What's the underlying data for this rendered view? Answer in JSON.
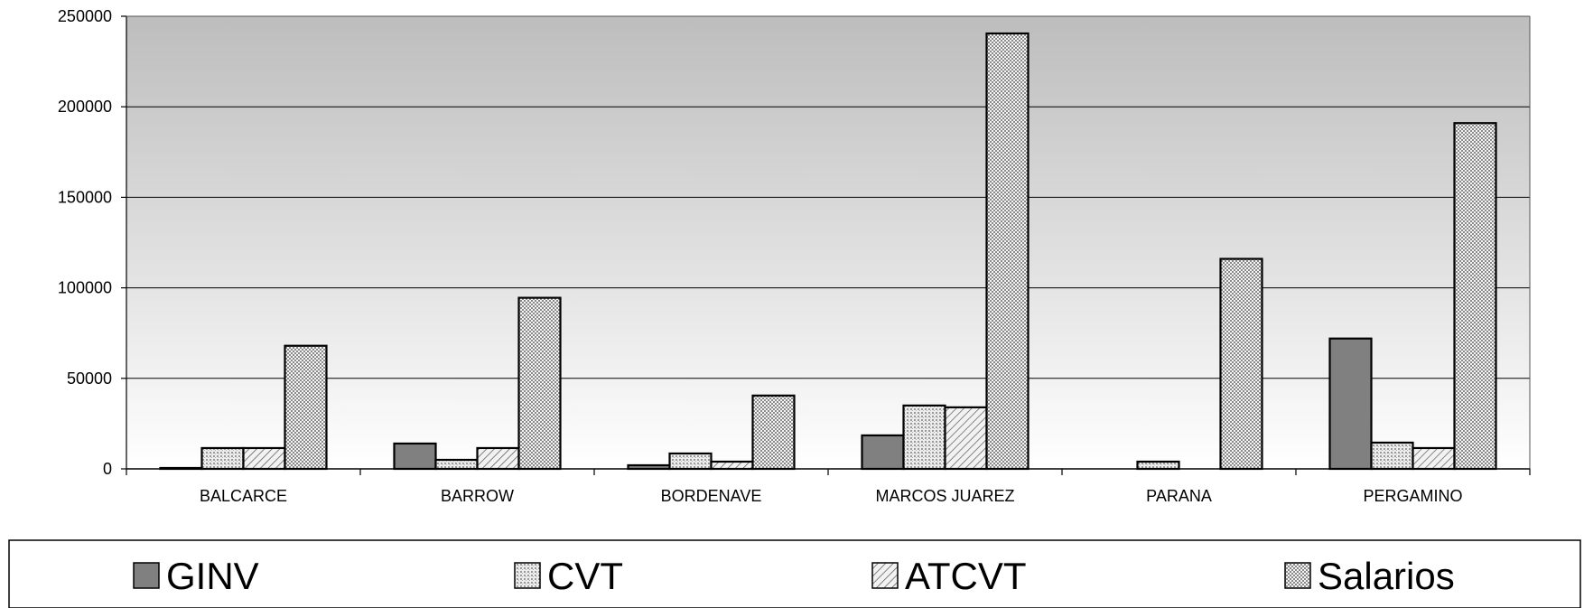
{
  "chart_data": {
    "type": "bar",
    "categories": [
      "BALCARCE",
      "BARROW",
      "BORDENAVE",
      "MARCOS JUAREZ",
      "PARANA",
      "PERGAMINO"
    ],
    "series": [
      {
        "name": "GINV",
        "values": [
          500,
          14000,
          2000,
          18500,
          0,
          72000
        ],
        "color": "#808080",
        "fill": "solid"
      },
      {
        "name": "CVT",
        "values": [
          11500,
          5000,
          8500,
          35000,
          4000,
          14500
        ],
        "color": "#c8c8c8",
        "fill": "fine-dots"
      },
      {
        "name": "ATCVT",
        "values": [
          11500,
          11500,
          4000,
          34000,
          0,
          11500
        ],
        "color": "#e6e6e6",
        "fill": "diagonal"
      },
      {
        "name": "Salarios",
        "values": [
          68000,
          94500,
          40500,
          240500,
          116000,
          191000
        ],
        "color": "#d6d6d6",
        "fill": "checker"
      }
    ],
    "title": "",
    "xlabel": "",
    "ylabel": "",
    "ylim": [
      0,
      250000
    ],
    "yticks": [
      0,
      50000,
      100000,
      150000,
      200000,
      250000
    ],
    "grid": true,
    "legend_position": "bottom",
    "background": "vertical-gradient-gray"
  }
}
